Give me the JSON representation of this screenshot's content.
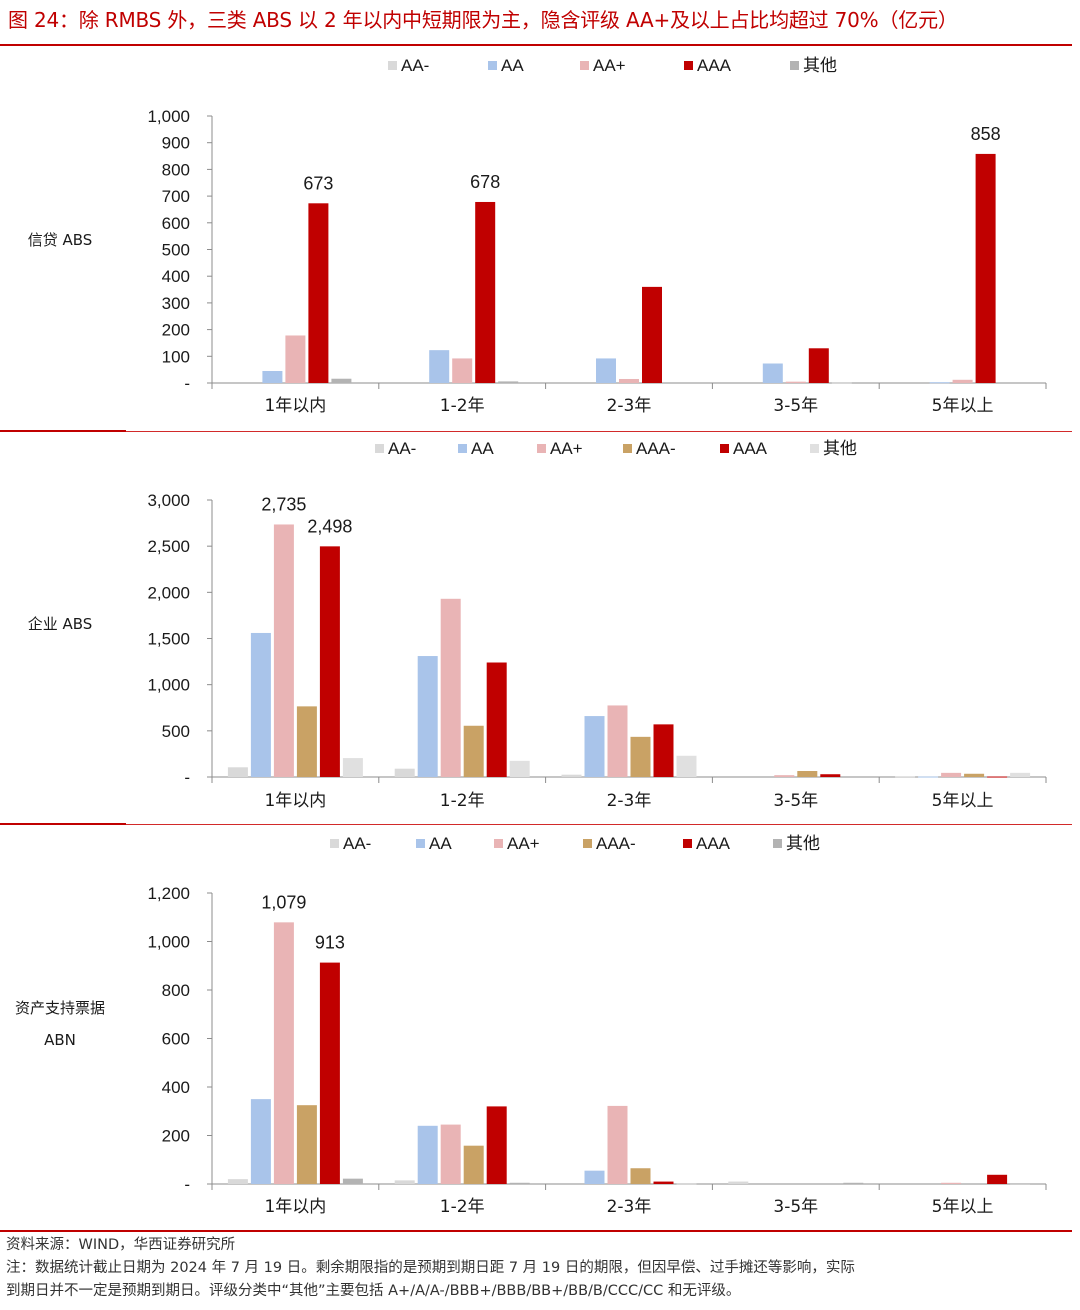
{
  "title": "图 24：除 RMBS 外，三类 ABS 以 2 年以内中短期限为主，隐含评级 AA+及以上占比均超过 70%（亿元）",
  "footer": {
    "source": "资料来源：WIND，华西证券研究所",
    "note_line1": "注：数据统计截止日期为 2024 年 7 月 19 日。剩余期限指的是预期到期日距 7 月 19 日的期限，但因早偿、过手摊还等影响，实际",
    "note_line2": "到期日并不一定是预期到期日。评级分类中“其他”主要包括 A+/A/A-/BBB+/BBB/BB+/BB/B/CCC/CC 和无评级。"
  },
  "colors": {
    "AA-": "#d9d9d9",
    "AA": "#a9c4ea",
    "AA+": "#e9b4b5",
    "AAA-": "#c9a265",
    "AAA": "#c00000",
    "其他_dark": "#b3b3b3",
    "其他_light": "#e0e0e0"
  },
  "panels": [
    {
      "panel_label": [
        "信贷 ABS"
      ],
      "legend": [
        "AA-",
        "AA",
        "AA+",
        "AAA",
        "其他"
      ]
    },
    {
      "panel_label": [
        "企业 ABS"
      ],
      "legend": [
        "AA-",
        "AA",
        "AA+",
        "AAA-",
        "AAA",
        "其他"
      ]
    },
    {
      "panel_label": [
        "资产支持票据",
        "ABN"
      ],
      "legend": [
        "AA-",
        "AA",
        "AA+",
        "AAA-",
        "AAA",
        "其他"
      ]
    }
  ],
  "chart_data": [
    {
      "type": "bar",
      "title": "",
      "ylabel": "信贷 ABS",
      "categories": [
        "1年以内",
        "1-2年",
        "2-3年",
        "3-5年",
        "5年以上"
      ],
      "ylim": [
        0,
        1000
      ],
      "yticks": [
        "-",
        "100",
        "200",
        "300",
        "400",
        "500",
        "600",
        "700",
        "800",
        "900",
        "1,000"
      ],
      "legend_position": "top-center",
      "grid": false,
      "series": [
        {
          "name": "AA-",
          "color": "#d9d9d9",
          "values": [
            0,
            0,
            0,
            0,
            0
          ]
        },
        {
          "name": "AA",
          "color": "#a9c4ea",
          "values": [
            45,
            123,
            92,
            73,
            3
          ]
        },
        {
          "name": "AA+",
          "color": "#e9b4b5",
          "values": [
            178,
            92,
            15,
            5,
            12
          ]
        },
        {
          "name": "AAA",
          "color": "#c00000",
          "values": [
            673,
            678,
            360,
            130,
            858
          ]
        },
        {
          "name": "其他",
          "color": "#b3b3b3",
          "values": [
            16,
            6,
            0,
            2,
            0
          ]
        }
      ],
      "data_labels": [
        {
          "series": "AAA",
          "category": "1年以内",
          "text": "673"
        },
        {
          "series": "AAA",
          "category": "1-2年",
          "text": "678"
        },
        {
          "series": "AAA",
          "category": "5年以上",
          "text": "858"
        }
      ]
    },
    {
      "type": "bar",
      "title": "",
      "ylabel": "企业 ABS",
      "categories": [
        "1年以内",
        "1-2年",
        "2-3年",
        "3-5年",
        "5年以上"
      ],
      "ylim": [
        0,
        3000
      ],
      "yticks": [
        "-",
        "500",
        "1,000",
        "1,500",
        "2,000",
        "2,500",
        "3,000"
      ],
      "legend_position": "top-center",
      "grid": false,
      "series": [
        {
          "name": "AA-",
          "color": "#d9d9d9",
          "values": [
            105,
            90,
            25,
            0,
            8
          ]
        },
        {
          "name": "AA",
          "color": "#a9c4ea",
          "values": [
            1560,
            1310,
            660,
            0,
            5
          ]
        },
        {
          "name": "AA+",
          "color": "#e9b4b5",
          "values": [
            2735,
            1930,
            775,
            20,
            45
          ]
        },
        {
          "name": "AAA-",
          "color": "#c9a265",
          "values": [
            765,
            555,
            435,
            65,
            35
          ]
        },
        {
          "name": "AAA",
          "color": "#c00000",
          "values": [
            2498,
            1240,
            570,
            30,
            5
          ]
        },
        {
          "name": "其他",
          "color": "#e0e0e0",
          "values": [
            205,
            175,
            230,
            0,
            45
          ]
        }
      ],
      "data_labels": [
        {
          "series": "AA+",
          "category": "1年以内",
          "text": "2,735"
        },
        {
          "series": "AAA",
          "category": "1年以内",
          "text": "2,498"
        }
      ]
    },
    {
      "type": "bar",
      "title": "",
      "ylabel": "资产支持票据 ABN",
      "categories": [
        "1年以内",
        "1-2年",
        "2-3年",
        "3-5年",
        "5年以上"
      ],
      "ylim": [
        0,
        1200
      ],
      "yticks": [
        "-",
        "200",
        "400",
        "600",
        "800",
        "1,000",
        "1,200"
      ],
      "legend_position": "top-center",
      "grid": false,
      "series": [
        {
          "name": "AA-",
          "color": "#d9d9d9",
          "values": [
            20,
            15,
            0,
            10,
            0
          ]
        },
        {
          "name": "AA",
          "color": "#a9c4ea",
          "values": [
            350,
            240,
            55,
            0,
            0
          ]
        },
        {
          "name": "AA+",
          "color": "#e9b4b5",
          "values": [
            1079,
            245,
            322,
            0,
            5
          ]
        },
        {
          "name": "AAA-",
          "color": "#c9a265",
          "values": [
            325,
            158,
            65,
            0,
            0
          ]
        },
        {
          "name": "AAA",
          "color": "#c00000",
          "values": [
            913,
            320,
            10,
            0,
            38
          ]
        },
        {
          "name": "其他",
          "color": "#b3b3b3",
          "values": [
            22,
            5,
            2,
            5,
            3
          ]
        }
      ],
      "data_labels": [
        {
          "series": "AA+",
          "category": "1年以内",
          "text": "1,079"
        },
        {
          "series": "AAA",
          "category": "1年以内",
          "text": "913"
        }
      ]
    }
  ]
}
